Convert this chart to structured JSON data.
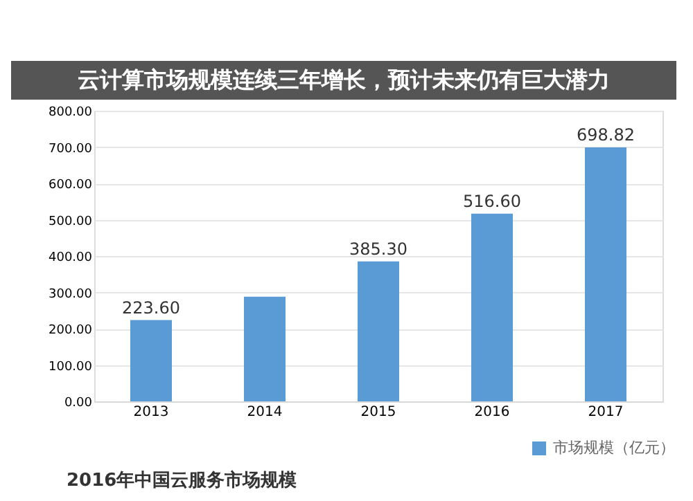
{
  "chart_data": {
    "type": "bar",
    "title": "2016年中国云服务市场规模",
    "annotations": [
      "云计算市场规模连续三年增长，预计未来仍有巨大潜力"
    ],
    "categories": [
      "2013",
      "2014",
      "2015",
      "2016",
      "2017"
    ],
    "series": [
      {
        "name": "市场规模（亿元）",
        "color": "#5b9bd5",
        "values": [
          223.6,
          288,
          385.3,
          516.6,
          698.82
        ]
      }
    ],
    "value_labels": [
      "223.60",
      null,
      "385.30",
      "516.60",
      "698.82"
    ],
    "ylim": [
      0,
      800
    ],
    "yticks": [
      {
        "value": 0,
        "label": "0.00"
      },
      {
        "value": 100,
        "label": "100.00"
      },
      {
        "value": 200,
        "label": "200.00"
      },
      {
        "value": 300,
        "label": "300.00"
      },
      {
        "value": 400,
        "label": "400.00"
      },
      {
        "value": 500,
        "label": "500.00"
      },
      {
        "value": 600,
        "label": "600.00"
      },
      {
        "value": 700,
        "label": "700.00"
      },
      {
        "value": 800,
        "label": "800.00"
      }
    ],
    "grid": "y",
    "legend": "bottom right"
  }
}
